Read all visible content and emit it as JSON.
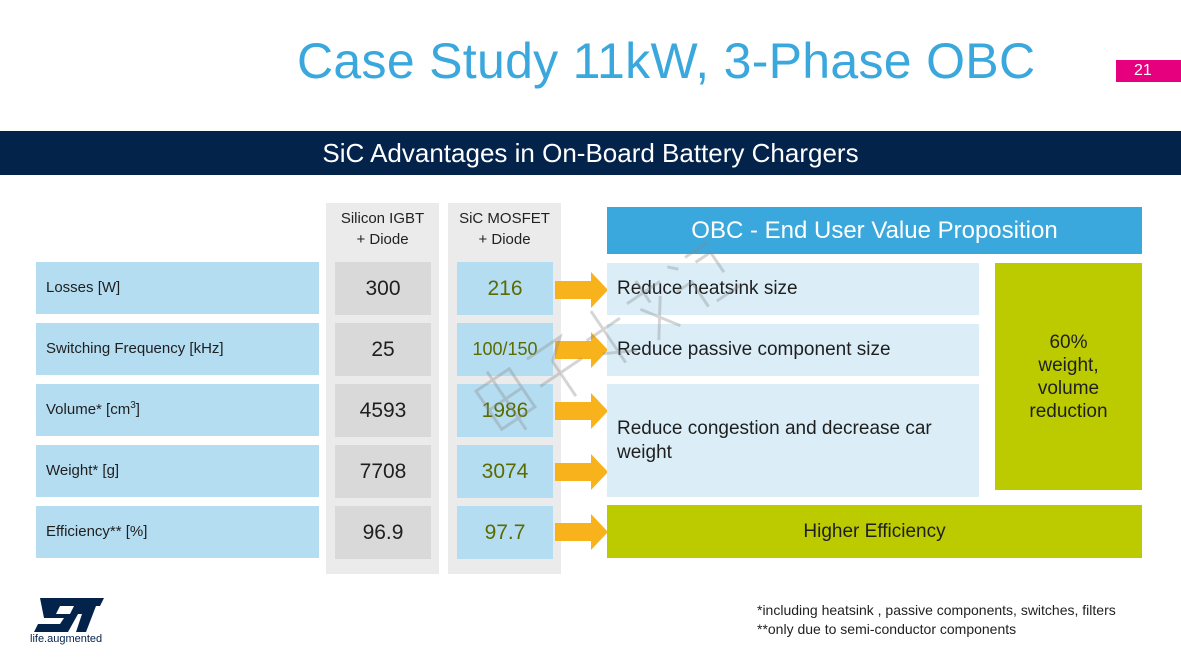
{
  "slide": {
    "title": "Case Study 11kW, 3-Phase OBC",
    "page_number": "21",
    "banner": "SiC Advantages in On-Board Battery Chargers"
  },
  "table": {
    "col_igbt": {
      "line1": "Silicon IGBT",
      "line2": "+ Diode"
    },
    "col_sic": {
      "line1": "SiC MOSFET",
      "line2": "+ Diode"
    },
    "rows": [
      {
        "label": "Losses  [W]",
        "igbt": "300",
        "sic": "216"
      },
      {
        "label": "Switching  Frequency  [kHz]",
        "igbt": "25",
        "sic": "100/150"
      },
      {
        "label": "Volume*  [cm",
        "label_sup": "3",
        "label_end": "]",
        "igbt": "4593",
        "sic": "1986"
      },
      {
        "label": "Weight* [g]",
        "igbt": "7708",
        "sic": "3074"
      },
      {
        "label": "Efficiency** [%]",
        "igbt": "96.9",
        "sic": "97.7"
      }
    ]
  },
  "value_proposition": {
    "header": "OBC - End User Value Proposition",
    "items": [
      "Reduce heatsink size",
      "Reduce passive component size",
      "Reduce congestion and decrease car weight"
    ],
    "summary": "60%\nweight,\nvolume\nreduction",
    "efficiency": "Higher Efficiency"
  },
  "footnotes": {
    "line1": "*including heatsink , passive components, switches, filters",
    "line2": "**only due to semi-conductor components"
  },
  "logo": {
    "tagline": "life.augmented"
  },
  "watermark": {
    "text": "电子技术设计"
  },
  "colors": {
    "title_blue": "#3aa8dc",
    "banner_navy": "#03234b",
    "accent_pink": "#e6007e",
    "label_blue": "#b4ddf1",
    "value_green": "#bccb00",
    "arrow_orange": "#f7b21c"
  }
}
